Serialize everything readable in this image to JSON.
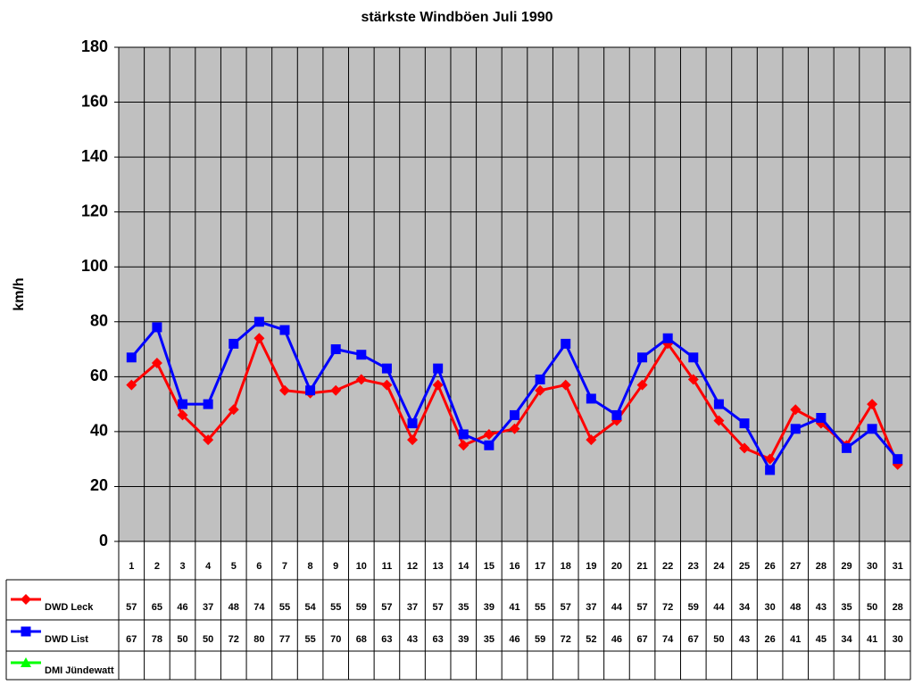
{
  "chart_data": {
    "type": "line",
    "title": "stärkste Windböen Juli 1990",
    "y_label": "km/h",
    "categories": [
      "1",
      "2",
      "3",
      "4",
      "5",
      "6",
      "7",
      "8",
      "9",
      "10",
      "11",
      "12",
      "13",
      "14",
      "15",
      "16",
      "17",
      "18",
      "19",
      "20",
      "21",
      "22",
      "23",
      "24",
      "25",
      "26",
      "27",
      "28",
      "29",
      "30",
      "31"
    ],
    "series": [
      {
        "name": "DWD Leck",
        "color": "#ff0000",
        "marker": "diamond",
        "values": [
          57,
          65,
          46,
          37,
          48,
          74,
          55,
          54,
          55,
          59,
          57,
          37,
          57,
          35,
          39,
          41,
          55,
          57,
          37,
          44,
          57,
          72,
          59,
          44,
          34,
          30,
          48,
          43,
          35,
          50,
          28
        ]
      },
      {
        "name": "DWD List",
        "color": "#0000ff",
        "marker": "square",
        "values": [
          67,
          78,
          50,
          50,
          72,
          80,
          77,
          55,
          70,
          68,
          63,
          43,
          63,
          39,
          35,
          46,
          59,
          72,
          52,
          46,
          67,
          74,
          67,
          50,
          43,
          26,
          41,
          45,
          34,
          41,
          30
        ]
      },
      {
        "name": "DMI Jündewatt",
        "color": "#00ff00",
        "marker": "triangle",
        "values": [
          null,
          null,
          null,
          null,
          null,
          null,
          null,
          null,
          null,
          null,
          null,
          null,
          null,
          null,
          null,
          null,
          null,
          null,
          null,
          null,
          null,
          null,
          null,
          null,
          null,
          null,
          null,
          null,
          null,
          null,
          null
        ]
      }
    ],
    "ylim": [
      0,
      180
    ],
    "yticks": [
      0,
      20,
      40,
      60,
      80,
      100,
      120,
      140,
      160,
      180
    ],
    "grid": true
  }
}
